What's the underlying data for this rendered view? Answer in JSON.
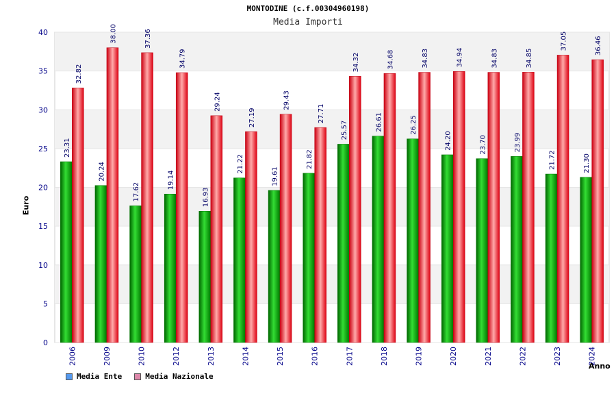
{
  "chart_data": {
    "type": "bar",
    "title": "MONTODINE (c.f.00304960198)",
    "subtitle": "Media Importi",
    "xlabel": "Anno",
    "ylabel": "Euro",
    "ylim": [
      0,
      40
    ],
    "yticks": [
      "0",
      "5",
      "10",
      "15",
      "20",
      "25",
      "30",
      "35",
      "40"
    ],
    "grid": true,
    "legend_position": "bottom-left",
    "categories": [
      "2006",
      "2009",
      "2010",
      "2012",
      "2013",
      "2014",
      "2015",
      "2016",
      "2017",
      "2018",
      "2019",
      "2020",
      "2021",
      "2022",
      "2023",
      "2024"
    ],
    "series": [
      {
        "name": "Media Ente",
        "color": "#00aa00",
        "legend_color": "#5599ee",
        "values": [
          23.31,
          20.24,
          17.62,
          19.14,
          16.93,
          21.22,
          19.61,
          21.82,
          25.57,
          26.61,
          26.25,
          24.2,
          23.7,
          23.99,
          21.72,
          21.3
        ],
        "labels": [
          "23.31",
          "20.24",
          "17.62",
          "19.14",
          "16.93",
          "21.22",
          "19.61",
          "21.82",
          "25.57",
          "26.61",
          "26.25",
          "24.20",
          "23.70",
          "23.99",
          "21.72",
          "21.30"
        ]
      },
      {
        "name": "Media Nazionale",
        "color": "#ee1122",
        "legend_color": "#dd88aa",
        "values": [
          32.82,
          38.0,
          37.36,
          34.79,
          29.24,
          27.19,
          29.43,
          27.71,
          34.32,
          34.68,
          34.83,
          34.94,
          34.83,
          34.85,
          37.05,
          36.46
        ],
        "labels": [
          "32.82",
          "38.00",
          "37.36",
          "34.79",
          "29.24",
          "27.19",
          "29.43",
          "27.71",
          "34.32",
          "34.68",
          "34.83",
          "34.94",
          "34.83",
          "34.85",
          "37.05",
          "36.46"
        ]
      }
    ]
  }
}
